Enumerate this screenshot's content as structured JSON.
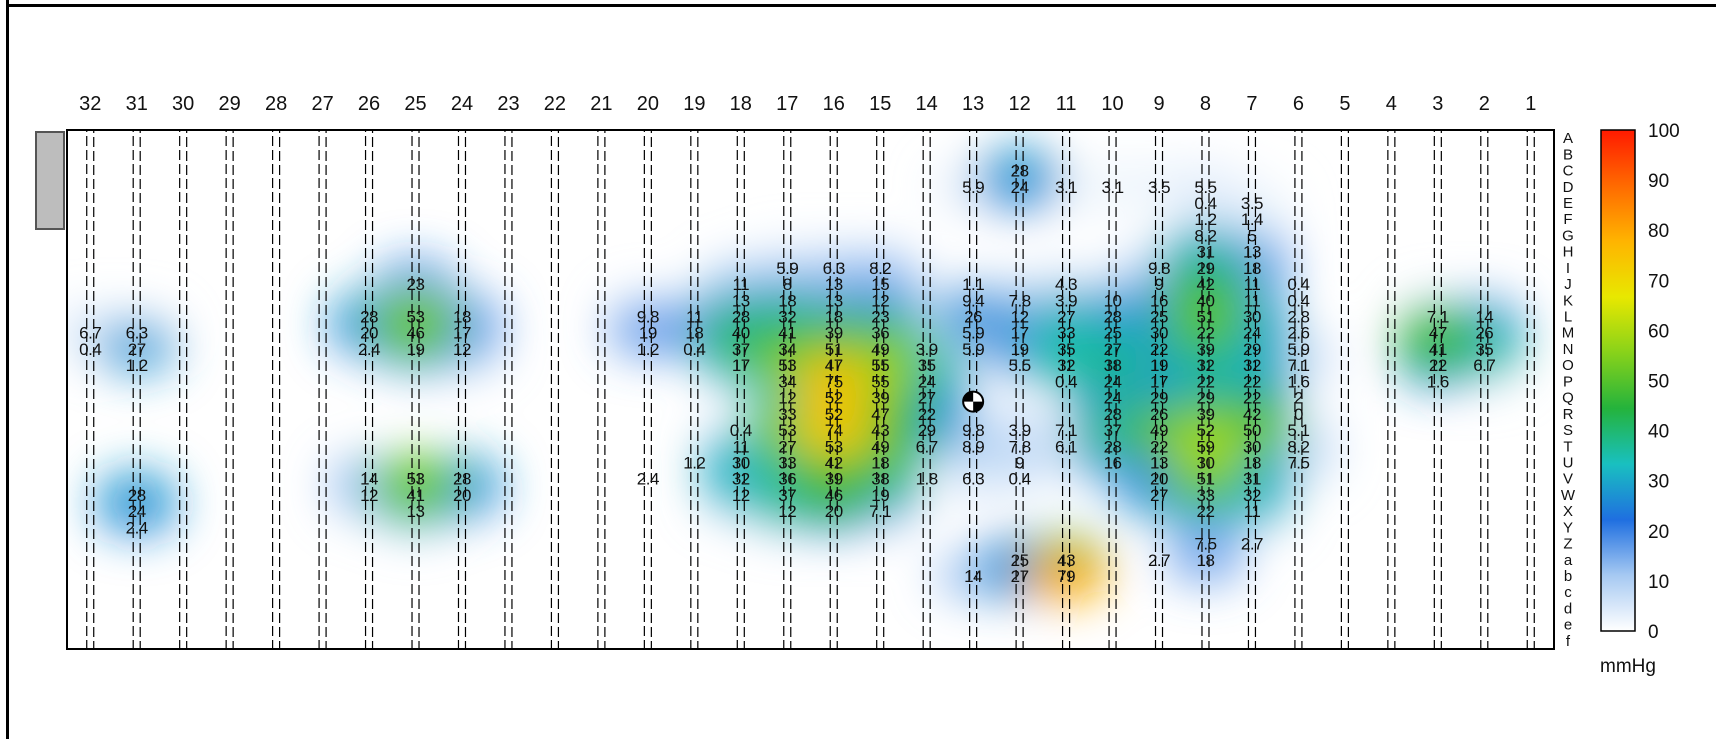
{
  "chart_data": {
    "type": "heatmap",
    "title": "",
    "unit": "mmHg",
    "color_scale": {
      "min": 0,
      "max": 100,
      "ticks": [
        "100",
        "90",
        "80",
        "70",
        "60",
        "50",
        "40",
        "30",
        "20",
        "10",
        "0"
      ],
      "colors": [
        "#ffffff",
        "#a6c9f2",
        "#1f6fe0",
        "#19c0c0",
        "#24b33c",
        "#88d21a",
        "#e8e800",
        "#ffb400",
        "#ff6a00",
        "#ff1a00"
      ]
    },
    "columns": [
      "32",
      "31",
      "30",
      "29",
      "28",
      "27",
      "26",
      "25",
      "24",
      "23",
      "22",
      "21",
      "20",
      "19",
      "18",
      "17",
      "16",
      "15",
      "14",
      "13",
      "12",
      "11",
      "10",
      "9",
      "8",
      "7",
      "6",
      "5",
      "4",
      "3",
      "2",
      "1"
    ],
    "rows": [
      "A",
      "B",
      "C",
      "D",
      "E",
      "F",
      "G",
      "H",
      "I",
      "J",
      "K",
      "L",
      "M",
      "N",
      "O",
      "P",
      "Q",
      "R",
      "S",
      "T",
      "U",
      "V",
      "W",
      "X",
      "Y",
      "Z",
      "a",
      "b",
      "c",
      "d",
      "e",
      "f"
    ],
    "cells": [
      {
        "col": "13",
        "row": "D",
        "v": "5.9"
      },
      {
        "col": "12",
        "row": "C",
        "v": "28"
      },
      {
        "col": "12",
        "row": "D",
        "v": "24"
      },
      {
        "col": "11",
        "row": "D",
        "v": "3.1"
      },
      {
        "col": "10",
        "row": "D",
        "v": "3.1"
      },
      {
        "col": "9",
        "row": "D",
        "v": "3.5"
      },
      {
        "col": "8",
        "row": "D",
        "v": "5.5"
      },
      {
        "col": "8",
        "row": "E",
        "v": "0.4"
      },
      {
        "col": "7",
        "row": "E",
        "v": "3.5"
      },
      {
        "col": "8",
        "row": "F",
        "v": "1.2"
      },
      {
        "col": "7",
        "row": "F",
        "v": "1.4"
      },
      {
        "col": "8",
        "row": "G",
        "v": "8.2"
      },
      {
        "col": "7",
        "row": "G",
        "v": "5"
      },
      {
        "col": "8",
        "row": "H",
        "v": "31"
      },
      {
        "col": "7",
        "row": "H",
        "v": "13"
      },
      {
        "col": "17",
        "row": "I",
        "v": "5.9"
      },
      {
        "col": "16",
        "row": "I",
        "v": "6.3"
      },
      {
        "col": "15",
        "row": "I",
        "v": "8.2"
      },
      {
        "col": "9",
        "row": "I",
        "v": "9.8"
      },
      {
        "col": "8",
        "row": "I",
        "v": "29"
      },
      {
        "col": "7",
        "row": "I",
        "v": "18"
      },
      {
        "col": "25",
        "row": "J",
        "v": "23"
      },
      {
        "col": "18",
        "row": "J",
        "v": "11"
      },
      {
        "col": "17",
        "row": "J",
        "v": "8"
      },
      {
        "col": "16",
        "row": "J",
        "v": "13"
      },
      {
        "col": "15",
        "row": "J",
        "v": "15"
      },
      {
        "col": "13",
        "row": "J",
        "v": "1.1"
      },
      {
        "col": "11",
        "row": "J",
        "v": "4.3"
      },
      {
        "col": "9",
        "row": "J",
        "v": "9"
      },
      {
        "col": "8",
        "row": "J",
        "v": "42"
      },
      {
        "col": "7",
        "row": "J",
        "v": "11"
      },
      {
        "col": "6",
        "row": "J",
        "v": "0.4"
      },
      {
        "col": "18",
        "row": "K",
        "v": "13"
      },
      {
        "col": "17",
        "row": "K",
        "v": "18"
      },
      {
        "col": "16",
        "row": "K",
        "v": "13"
      },
      {
        "col": "15",
        "row": "K",
        "v": "12"
      },
      {
        "col": "13",
        "row": "K",
        "v": "9.4"
      },
      {
        "col": "12",
        "row": "K",
        "v": "7.8"
      },
      {
        "col": "11",
        "row": "K",
        "v": "3.9"
      },
      {
        "col": "10",
        "row": "K",
        "v": "10"
      },
      {
        "col": "9",
        "row": "K",
        "v": "16"
      },
      {
        "col": "8",
        "row": "K",
        "v": "40"
      },
      {
        "col": "7",
        "row": "K",
        "v": "11"
      },
      {
        "col": "6",
        "row": "K",
        "v": "0.4"
      },
      {
        "col": "26",
        "row": "L",
        "v": "28"
      },
      {
        "col": "25",
        "row": "L",
        "v": "53"
      },
      {
        "col": "24",
        "row": "L",
        "v": "18"
      },
      {
        "col": "20",
        "row": "L",
        "v": "9.8"
      },
      {
        "col": "19",
        "row": "L",
        "v": "11"
      },
      {
        "col": "18",
        "row": "L",
        "v": "28"
      },
      {
        "col": "17",
        "row": "L",
        "v": "32"
      },
      {
        "col": "16",
        "row": "L",
        "v": "18"
      },
      {
        "col": "15",
        "row": "L",
        "v": "23"
      },
      {
        "col": "13",
        "row": "L",
        "v": "26"
      },
      {
        "col": "12",
        "row": "L",
        "v": "12"
      },
      {
        "col": "11",
        "row": "L",
        "v": "27"
      },
      {
        "col": "10",
        "row": "L",
        "v": "28"
      },
      {
        "col": "9",
        "row": "L",
        "v": "25"
      },
      {
        "col": "8",
        "row": "L",
        "v": "51"
      },
      {
        "col": "7",
        "row": "L",
        "v": "30"
      },
      {
        "col": "6",
        "row": "L",
        "v": "2.8"
      },
      {
        "col": "3",
        "row": "L",
        "v": "7.1"
      },
      {
        "col": "2",
        "row": "L",
        "v": "14"
      },
      {
        "col": "32",
        "row": "M",
        "v": "6.7"
      },
      {
        "col": "31",
        "row": "M",
        "v": "6.3"
      },
      {
        "col": "26",
        "row": "M",
        "v": "20"
      },
      {
        "col": "25",
        "row": "M",
        "v": "46"
      },
      {
        "col": "24",
        "row": "M",
        "v": "17"
      },
      {
        "col": "20",
        "row": "M",
        "v": "19"
      },
      {
        "col": "19",
        "row": "M",
        "v": "18"
      },
      {
        "col": "18",
        "row": "M",
        "v": "40"
      },
      {
        "col": "17",
        "row": "M",
        "v": "41"
      },
      {
        "col": "16",
        "row": "M",
        "v": "39"
      },
      {
        "col": "15",
        "row": "M",
        "v": "36"
      },
      {
        "col": "13",
        "row": "M",
        "v": "5.9"
      },
      {
        "col": "12",
        "row": "M",
        "v": "17"
      },
      {
        "col": "11",
        "row": "M",
        "v": "33"
      },
      {
        "col": "10",
        "row": "M",
        "v": "25"
      },
      {
        "col": "9",
        "row": "M",
        "v": "30"
      },
      {
        "col": "8",
        "row": "M",
        "v": "22"
      },
      {
        "col": "7",
        "row": "M",
        "v": "24"
      },
      {
        "col": "6",
        "row": "M",
        "v": "2.6"
      },
      {
        "col": "3",
        "row": "M",
        "v": "47"
      },
      {
        "col": "2",
        "row": "M",
        "v": "26"
      },
      {
        "col": "32",
        "row": "N",
        "v": "0.4"
      },
      {
        "col": "31",
        "row": "N",
        "v": "27"
      },
      {
        "col": "26",
        "row": "N",
        "v": "2.4"
      },
      {
        "col": "25",
        "row": "N",
        "v": "19"
      },
      {
        "col": "24",
        "row": "N",
        "v": "12"
      },
      {
        "col": "20",
        "row": "N",
        "v": "1.2"
      },
      {
        "col": "19",
        "row": "N",
        "v": "0.4"
      },
      {
        "col": "18",
        "row": "N",
        "v": "37"
      },
      {
        "col": "17",
        "row": "N",
        "v": "34"
      },
      {
        "col": "16",
        "row": "N",
        "v": "51"
      },
      {
        "col": "15",
        "row": "N",
        "v": "49"
      },
      {
        "col": "14",
        "row": "N",
        "v": "3.9"
      },
      {
        "col": "13",
        "row": "N",
        "v": "5.9"
      },
      {
        "col": "12",
        "row": "N",
        "v": "19"
      },
      {
        "col": "11",
        "row": "N",
        "v": "35"
      },
      {
        "col": "10",
        "row": "N",
        "v": "27"
      },
      {
        "col": "9",
        "row": "N",
        "v": "22"
      },
      {
        "col": "8",
        "row": "N",
        "v": "39"
      },
      {
        "col": "7",
        "row": "N",
        "v": "29"
      },
      {
        "col": "6",
        "row": "N",
        "v": "5.9"
      },
      {
        "col": "3",
        "row": "N",
        "v": "41"
      },
      {
        "col": "2",
        "row": "N",
        "v": "35"
      },
      {
        "col": "31",
        "row": "O",
        "v": "1.2"
      },
      {
        "col": "18",
        "row": "O",
        "v": "17"
      },
      {
        "col": "17",
        "row": "O",
        "v": "53"
      },
      {
        "col": "16",
        "row": "O",
        "v": "47"
      },
      {
        "col": "15",
        "row": "O",
        "v": "55"
      },
      {
        "col": "14",
        "row": "O",
        "v": "35"
      },
      {
        "col": "12",
        "row": "O",
        "v": "5.5"
      },
      {
        "col": "11",
        "row": "O",
        "v": "32"
      },
      {
        "col": "10",
        "row": "O",
        "v": "38"
      },
      {
        "col": "9",
        "row": "O",
        "v": "19"
      },
      {
        "col": "8",
        "row": "O",
        "v": "32"
      },
      {
        "col": "7",
        "row": "O",
        "v": "32"
      },
      {
        "col": "6",
        "row": "O",
        "v": "7.1"
      },
      {
        "col": "3",
        "row": "O",
        "v": "22"
      },
      {
        "col": "2",
        "row": "O",
        "v": "6.7"
      },
      {
        "col": "17",
        "row": "P",
        "v": "34"
      },
      {
        "col": "16",
        "row": "P",
        "v": "75"
      },
      {
        "col": "15",
        "row": "P",
        "v": "55"
      },
      {
        "col": "14",
        "row": "P",
        "v": "24"
      },
      {
        "col": "11",
        "row": "P",
        "v": "0.4"
      },
      {
        "col": "10",
        "row": "P",
        "v": "24"
      },
      {
        "col": "9",
        "row": "P",
        "v": "17"
      },
      {
        "col": "8",
        "row": "P",
        "v": "22"
      },
      {
        "col": "7",
        "row": "P",
        "v": "22"
      },
      {
        "col": "6",
        "row": "P",
        "v": "1.6"
      },
      {
        "col": "3",
        "row": "P",
        "v": "1.6"
      },
      {
        "col": "17",
        "row": "Q",
        "v": "12"
      },
      {
        "col": "16",
        "row": "Q",
        "v": "52"
      },
      {
        "col": "15",
        "row": "Q",
        "v": "39"
      },
      {
        "col": "14",
        "row": "Q",
        "v": "27"
      },
      {
        "col": "10",
        "row": "Q",
        "v": "24"
      },
      {
        "col": "9",
        "row": "Q",
        "v": "29"
      },
      {
        "col": "8",
        "row": "Q",
        "v": "29"
      },
      {
        "col": "7",
        "row": "Q",
        "v": "22"
      },
      {
        "col": "6",
        "row": "Q",
        "v": "2"
      },
      {
        "col": "17",
        "row": "R",
        "v": "33"
      },
      {
        "col": "16",
        "row": "R",
        "v": "52"
      },
      {
        "col": "15",
        "row": "R",
        "v": "47"
      },
      {
        "col": "14",
        "row": "R",
        "v": "22"
      },
      {
        "col": "10",
        "row": "R",
        "v": "28"
      },
      {
        "col": "9",
        "row": "R",
        "v": "26"
      },
      {
        "col": "8",
        "row": "R",
        "v": "39"
      },
      {
        "col": "7",
        "row": "R",
        "v": "42"
      },
      {
        "col": "6",
        "row": "R",
        "v": "0"
      },
      {
        "col": "18",
        "row": "S",
        "v": "0.4"
      },
      {
        "col": "17",
        "row": "S",
        "v": "53"
      },
      {
        "col": "16",
        "row": "S",
        "v": "74"
      },
      {
        "col": "15",
        "row": "S",
        "v": "43"
      },
      {
        "col": "14",
        "row": "S",
        "v": "29"
      },
      {
        "col": "13",
        "row": "S",
        "v": "9.8"
      },
      {
        "col": "12",
        "row": "S",
        "v": "3.9"
      },
      {
        "col": "11",
        "row": "S",
        "v": "7.1"
      },
      {
        "col": "10",
        "row": "S",
        "v": "37"
      },
      {
        "col": "9",
        "row": "S",
        "v": "49"
      },
      {
        "col": "8",
        "row": "S",
        "v": "52"
      },
      {
        "col": "7",
        "row": "S",
        "v": "50"
      },
      {
        "col": "6",
        "row": "S",
        "v": "5.1"
      },
      {
        "col": "18",
        "row": "T",
        "v": "11"
      },
      {
        "col": "17",
        "row": "T",
        "v": "27"
      },
      {
        "col": "16",
        "row": "T",
        "v": "53"
      },
      {
        "col": "15",
        "row": "T",
        "v": "49"
      },
      {
        "col": "14",
        "row": "T",
        "v": "6.7"
      },
      {
        "col": "13",
        "row": "T",
        "v": "8.9"
      },
      {
        "col": "12",
        "row": "T",
        "v": "7.8"
      },
      {
        "col": "11",
        "row": "T",
        "v": "6.1"
      },
      {
        "col": "10",
        "row": "T",
        "v": "28"
      },
      {
        "col": "9",
        "row": "T",
        "v": "22"
      },
      {
        "col": "8",
        "row": "T",
        "v": "59"
      },
      {
        "col": "7",
        "row": "T",
        "v": "30"
      },
      {
        "col": "6",
        "row": "T",
        "v": "8.2"
      },
      {
        "col": "19",
        "row": "U",
        "v": "1.2"
      },
      {
        "col": "18",
        "row": "U",
        "v": "30"
      },
      {
        "col": "17",
        "row": "U",
        "v": "33"
      },
      {
        "col": "16",
        "row": "U",
        "v": "42"
      },
      {
        "col": "15",
        "row": "U",
        "v": "18"
      },
      {
        "col": "12",
        "row": "U",
        "v": "9"
      },
      {
        "col": "10",
        "row": "U",
        "v": "16"
      },
      {
        "col": "9",
        "row": "U",
        "v": "13"
      },
      {
        "col": "8",
        "row": "U",
        "v": "30"
      },
      {
        "col": "7",
        "row": "U",
        "v": "18"
      },
      {
        "col": "6",
        "row": "U",
        "v": "7.5"
      },
      {
        "col": "26",
        "row": "V",
        "v": "14"
      },
      {
        "col": "25",
        "row": "V",
        "v": "53"
      },
      {
        "col": "24",
        "row": "V",
        "v": "28"
      },
      {
        "col": "20",
        "row": "V",
        "v": "2.4"
      },
      {
        "col": "18",
        "row": "V",
        "v": "32"
      },
      {
        "col": "17",
        "row": "V",
        "v": "36"
      },
      {
        "col": "16",
        "row": "V",
        "v": "39"
      },
      {
        "col": "15",
        "row": "V",
        "v": "38"
      },
      {
        "col": "14",
        "row": "V",
        "v": "1.8"
      },
      {
        "col": "13",
        "row": "V",
        "v": "6.3"
      },
      {
        "col": "12",
        "row": "V",
        "v": "0.4"
      },
      {
        "col": "9",
        "row": "V",
        "v": "20"
      },
      {
        "col": "8",
        "row": "V",
        "v": "51"
      },
      {
        "col": "7",
        "row": "V",
        "v": "31"
      },
      {
        "col": "31",
        "row": "W",
        "v": "28"
      },
      {
        "col": "26",
        "row": "W",
        "v": "12"
      },
      {
        "col": "25",
        "row": "W",
        "v": "41"
      },
      {
        "col": "24",
        "row": "W",
        "v": "20"
      },
      {
        "col": "18",
        "row": "W",
        "v": "12"
      },
      {
        "col": "17",
        "row": "W",
        "v": "37"
      },
      {
        "col": "16",
        "row": "W",
        "v": "46"
      },
      {
        "col": "15",
        "row": "W",
        "v": "19"
      },
      {
        "col": "9",
        "row": "W",
        "v": "27"
      },
      {
        "col": "8",
        "row": "W",
        "v": "33"
      },
      {
        "col": "7",
        "row": "W",
        "v": "32"
      },
      {
        "col": "31",
        "row": "X",
        "v": "24"
      },
      {
        "col": "25",
        "row": "X",
        "v": "13"
      },
      {
        "col": "17",
        "row": "X",
        "v": "12"
      },
      {
        "col": "16",
        "row": "X",
        "v": "20"
      },
      {
        "col": "15",
        "row": "X",
        "v": "7.1"
      },
      {
        "col": "8",
        "row": "X",
        "v": "22"
      },
      {
        "col": "7",
        "row": "X",
        "v": "11"
      },
      {
        "col": "31",
        "row": "Y",
        "v": "2.4"
      },
      {
        "col": "8",
        "row": "Z",
        "v": "7.5"
      },
      {
        "col": "7",
        "row": "Z",
        "v": "2.7"
      },
      {
        "col": "9",
        "row": "a",
        "v": "2.7"
      },
      {
        "col": "8",
        "row": "a",
        "v": "18"
      },
      {
        "col": "12",
        "row": "a",
        "v": "25"
      },
      {
        "col": "11",
        "row": "a",
        "v": "43"
      },
      {
        "col": "13",
        "row": "b",
        "v": "14"
      },
      {
        "col": "12",
        "row": "b",
        "v": "27"
      },
      {
        "col": "11",
        "row": "b",
        "v": "79"
      }
    ],
    "marker": {
      "type": "center-of-pressure",
      "col": 13,
      "row": "Q"
    }
  }
}
